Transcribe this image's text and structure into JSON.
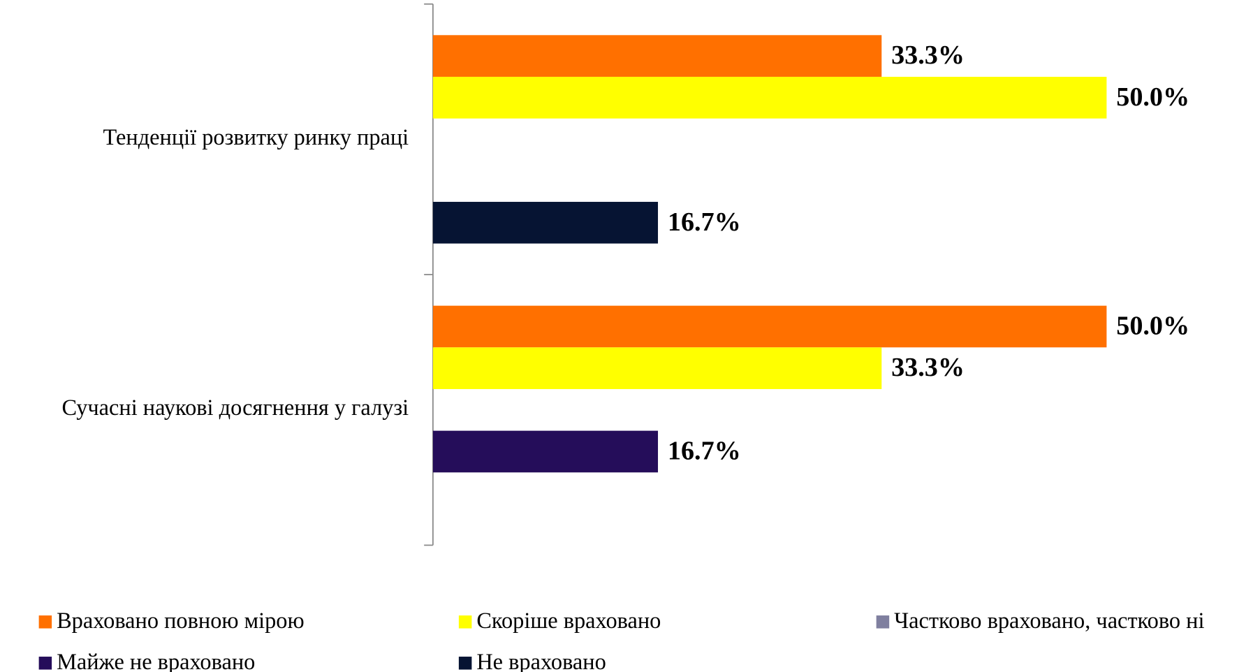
{
  "chart_data": {
    "type": "bar",
    "orientation": "horizontal",
    "categories": [
      "Тенденції розвитку ринку праці",
      "Сучасні наукові досягнення у галузі"
    ],
    "series": [
      {
        "name": "Враховано повною мірою",
        "color": "#ff7000",
        "values": [
          33.3,
          50.0
        ],
        "value_labels": [
          "33.3%",
          "50.0%"
        ]
      },
      {
        "name": "Скоріше враховано",
        "color": "#ffff00",
        "values": [
          50.0,
          33.3
        ],
        "value_labels": [
          "50.0%",
          "33.3%"
        ]
      },
      {
        "name": "Частково враховано, частково ні",
        "color": "#7f7f9f",
        "values": [
          null,
          null
        ],
        "value_labels": [
          null,
          null
        ]
      },
      {
        "name": "Майже не враховано",
        "color": "#250d5a",
        "values": [
          null,
          16.7
        ],
        "value_labels": [
          null,
          "16.7%"
        ]
      },
      {
        "name": "Не враховано",
        "color": "#061433",
        "values": [
          16.7,
          null
        ],
        "value_labels": [
          "16.7%",
          null
        ]
      }
    ],
    "xlim": [
      0,
      60
    ],
    "legend": "bottom"
  }
}
